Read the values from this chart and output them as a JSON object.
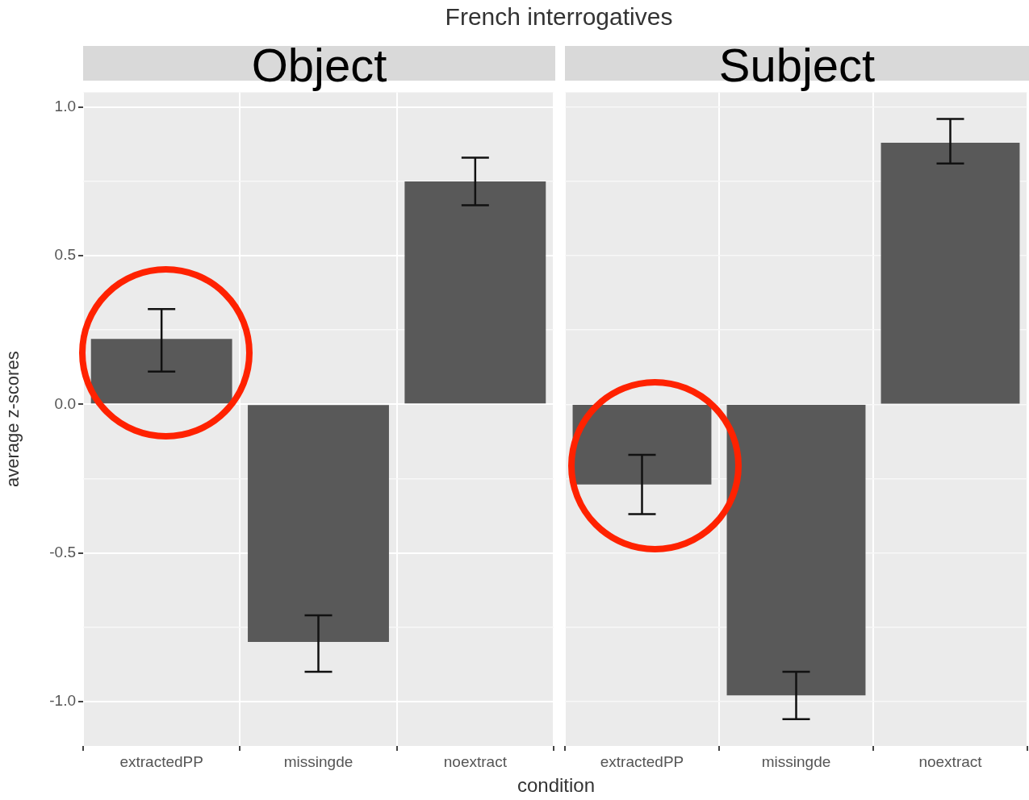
{
  "chart_data": [
    {
      "type": "bar",
      "title": "French interrogatives",
      "subtitle": "Object",
      "xlabel": "condition",
      "ylabel": "average z-scores",
      "categories": [
        "extractedPP",
        "missingde",
        "noextract"
      ],
      "series": [
        {
          "color": "#595959",
          "values": [
            0.22,
            -0.8,
            0.75
          ],
          "errors": [
            [
              0.11,
              0.32
            ],
            [
              -0.9,
              -0.71
            ],
            [
              0.67,
              0.83
            ]
          ]
        }
      ],
      "ylim": [
        -1.15,
        1.05
      ],
      "yticks": [
        {
          "value": -1,
          "label": "-1.0"
        },
        {
          "value": -0.75,
          "label": null
        },
        {
          "value": -0.5,
          "label": "-0.5"
        },
        {
          "value": -0.25,
          "label": null
        },
        {
          "value": 0,
          "label": "0.0"
        },
        {
          "value": 0.25,
          "label": null
        },
        {
          "value": 0.5,
          "label": "0.5"
        },
        {
          "value": 0.75,
          "label": null
        },
        {
          "value": 1,
          "label": "1.0"
        }
      ],
      "grid": true,
      "legend": false
    },
    {
      "type": "bar",
      "subtitle": "Subject",
      "categories": [
        "extractedPP",
        "missingde",
        "noextract"
      ],
      "series": [
        {
          "color": "#595959",
          "values": [
            -0.27,
            -0.98,
            0.88
          ],
          "errors": [
            [
              -0.37,
              -0.17
            ],
            [
              -1.06,
              -0.9
            ],
            [
              0.81,
              0.96
            ]
          ]
        }
      ],
      "ylim": [
        -1.15,
        1.05
      ],
      "yticks": [
        {
          "value": -1,
          "label": null
        },
        {
          "value": -0.75,
          "label": null
        },
        {
          "value": -0.5,
          "label": null
        },
        {
          "value": -0.25,
          "label": null
        },
        {
          "value": 0,
          "label": null
        },
        {
          "value": 0.25,
          "label": null
        },
        {
          "value": 0.5,
          "label": null
        },
        {
          "value": 0.75,
          "label": null
        },
        {
          "value": 1,
          "label": null
        }
      ],
      "grid": true,
      "legend": false,
      "tick_labels": "x"
    }
  ]
}
